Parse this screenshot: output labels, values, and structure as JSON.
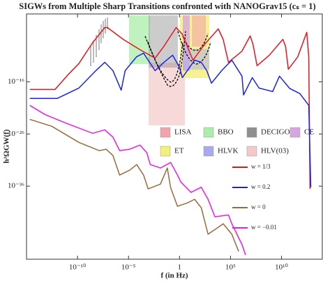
{
  "chart_data": {
    "type": "line",
    "title": "SIGWs from Multiple Sharp Transitions confronted with NANOGrav15 (cₛ = 1)",
    "x_label": "f (in Hz)",
    "y_label": "h²ΩGW(f)",
    "log_x": true,
    "log_y": true,
    "xlim": [
      1e-15,
      100000000000000.0
    ],
    "ylim": [
      1e-50,
      0.001
    ],
    "xticks": [
      {
        "value": 1e-10,
        "label": "10⁻¹⁰"
      },
      {
        "value": 1e-05,
        "label": "10⁻⁵"
      },
      1,
      {
        "value": 100000.0,
        "label": "10⁵"
      },
      {
        "value": 10000000000.0,
        "label": "10¹⁰"
      }
    ],
    "yticks": [
      {
        "value": 1e-16,
        "label": "10⁻¹⁶"
      },
      {
        "value": 1e-26,
        "label": "10⁻²⁶"
      },
      {
        "value": 1e-36,
        "label": "10⁻³⁶"
      }
    ],
    "sensitivity_legend": [
      {
        "name": "LISA",
        "color": "#f2a3ab"
      },
      {
        "name": "BBO",
        "color": "#a9eea9"
      },
      {
        "name": "DECIGO",
        "color": "#8f8f8f"
      },
      {
        "name": "CE",
        "color": "#d6a6df"
      },
      {
        "name": "ET",
        "color": "#f3ef78"
      },
      {
        "name": "HLVK",
        "color": "#a9a9ef"
      },
      {
        "name": "HLV(03)",
        "color": "#f3c9c9"
      }
    ],
    "series": [
      {
        "name": "w = 1/3",
        "color": "#e8141c",
        "x": [
          2.1e-15,
          6.3e-13,
          1.35e-11,
          1.35e-10,
          3e-09,
          4.7e-08,
          8.5e-08,
          3e-06,
          0.000135,
          0.004,
          0.03,
          0.47,
          1.9,
          21,
          300,
          6300,
          19000,
          63000,
          1350000.0,
          8500000.0,
          16000000.0,
          40000000.0,
          630000000.0,
          13500000000.0,
          25000000000.0,
          47000000000.0,
          400000000000.0,
          3000000000000.0,
          4700000000000.0,
          6300000000000.0
        ],
        "values": [
          3.4e-18,
          3.4e-18,
          3e-15,
          3e-13,
          3e-09,
          2.5e-06,
          2.5e-06,
          1.35e-08,
          1.35e-10,
          3.4e-12,
          6.3e-10,
          2.5e-06,
          1.2e-07,
          1.35e-12,
          1.6e-09,
          1.35e-06,
          1.35e-08,
          5.4e-13,
          7.4e-11,
          6.3e-08,
          1.6e-09,
          1.2e-13,
          1.2e-11,
          1.35e-08,
          6.3e-10,
          2.5e-14,
          6.3e-12,
          3e-07,
          6.3e-12,
          3e-37
        ]
      },
      {
        "name": "w = 0.2",
        "color": "#1a22e8",
        "x": [
          2.1e-15,
          1e-12,
          1.35e-10,
          6.3e-09,
          4.7e-08,
          3e-07,
          1.9e-06,
          4.7e-06,
          6.3e-05,
          0.0003,
          0.004,
          0.03,
          0.21,
          1,
          1.9,
          30,
          135,
          470,
          1350,
          13500,
          135000.0,
          1350000.0,
          1900000.0,
          13500000.0,
          63000000.0,
          1350000000.0,
          6300000000.0,
          63000000000.0,
          630000000000.0,
          4700000000000.0,
          7400000000000.0
        ],
        "values": [
          6.3e-20,
          6.3e-20,
          6.3e-18,
          1.35e-14,
          5.4e-13,
          1.35e-14,
          2.5e-18,
          1.35e-14,
          6.3e-12,
          3e-11,
          1.35e-14,
          5.4e-13,
          1.2e-11,
          6.3e-14,
          6.3e-16,
          1.35e-12,
          5.4e-13,
          1.35e-14,
          5.4e-17,
          1.35e-14,
          1.35e-12,
          1.2e-15,
          3e-19,
          6.3e-16,
          6.3e-18,
          1.35e-18,
          1.2e-15,
          5.4e-18,
          5.4e-19,
          3e-21,
          6.3e-37
        ]
      },
      {
        "name": "w = 0",
        "color": "#9a6a3a",
        "x": [
          2.1e-15,
          3e-13,
          1.35e-10,
          1.35e-08,
          6.3e-08,
          3e-07,
          1.35e-06,
          1.35e-05,
          6.3e-05,
          0.0003,
          0.00085,
          0.0135,
          0.063,
          0.135,
          0.63,
          6.3,
          30,
          135,
          630,
          6300,
          19000,
          135000.0,
          630000.0
        ],
        "values": [
          6.3e-24,
          3e-25,
          2.5e-28,
          6.3e-30,
          1.2e-29,
          7.4e-31,
          1.35e-34,
          1.2e-33,
          1.35e-32,
          1.35e-34,
          3e-37,
          2.5e-36,
          3e-33,
          5.4e-37,
          1.35e-40,
          6.3e-40,
          3e-39,
          7.4e-41,
          6.3e-46,
          1.35e-44,
          6.3e-44,
          6.3e-46,
          3e-49
        ]
      },
      {
        "name": "w = −0.01",
        "color": "#ee18ee",
        "x": [
          2.1e-15,
          6.3e-14,
          6.3e-12,
          3e-09,
          4.7e-08,
          3e-07,
          1.35e-06,
          1.35e-05,
          0.000135,
          0.00063,
          0.00135,
          0.0135,
          0.135,
          0.63,
          1.35,
          13.5,
          135,
          630,
          3000,
          63000,
          135000.0,
          1350000.0,
          3000000.0
        ],
        "values": [
          3e-21,
          5.4e-23,
          1.35e-24,
          1.35e-26,
          6.3e-26,
          2.5e-27,
          6.3e-30,
          1.2e-29,
          7.4e-29,
          2.5e-30,
          1.35e-32,
          3e-33,
          3.4e-32,
          1.35e-34,
          6.3e-36,
          6.3e-38,
          6.3e-37,
          3e-39,
          1.35e-42,
          3e-42,
          6.3e-44,
          6.3e-48,
          6.3e-50
        ]
      }
    ]
  }
}
